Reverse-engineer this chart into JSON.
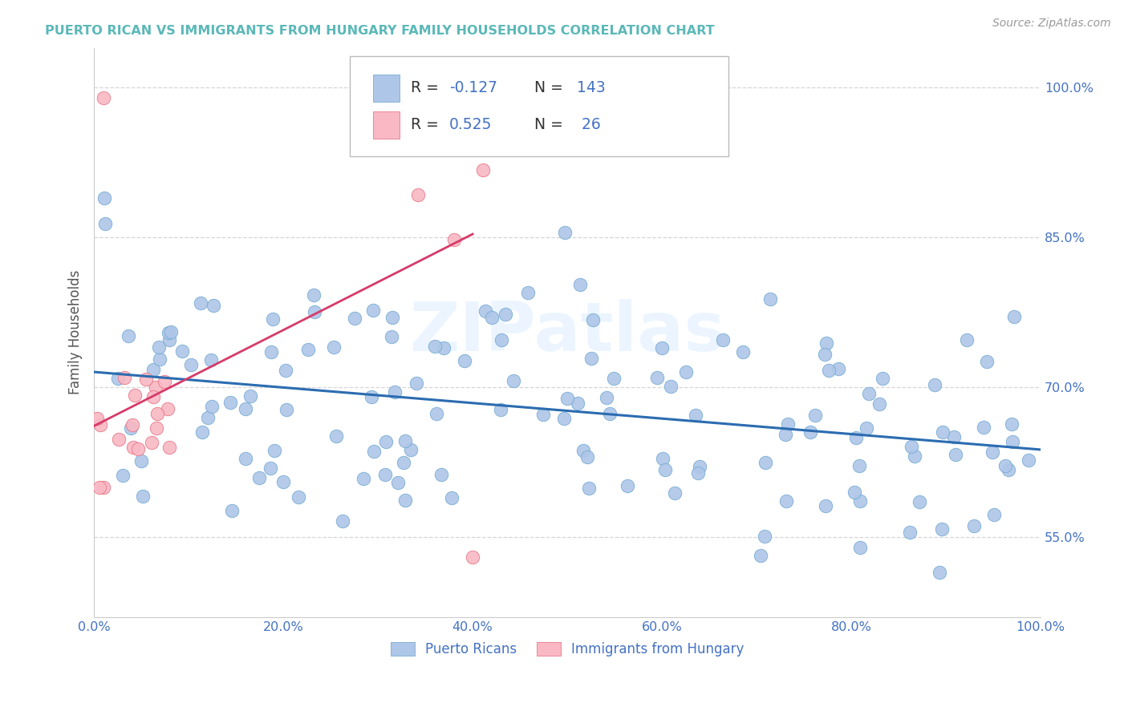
{
  "title": "PUERTO RICAN VS IMMIGRANTS FROM HUNGARY FAMILY HOUSEHOLDS CORRELATION CHART",
  "title_color": "#5BB8B8",
  "source_text": "Source: ZipAtlas.com",
  "ylabel": "Family Households",
  "xlim": [
    0.0,
    1.0
  ],
  "ylim": [
    0.47,
    1.04
  ],
  "yticks": [
    0.55,
    0.7,
    0.85,
    1.0
  ],
  "ytick_labels": [
    "55.0%",
    "70.0%",
    "85.0%",
    "100.0%"
  ],
  "xticks": [
    0.0,
    0.2,
    0.4,
    0.6,
    0.8,
    1.0
  ],
  "xtick_labels": [
    "0.0%",
    "20.0%",
    "40.0%",
    "60.0%",
    "80.0%",
    "100.0%"
  ],
  "blue_color": "#AEC6E8",
  "blue_edge": "#7AADD4",
  "pink_color": "#F9B8C4",
  "pink_edge": "#E87A8A",
  "trend_blue": "#2B6CB0",
  "trend_pink": "#D63B6A",
  "legend_label_blue": "Puerto Ricans",
  "legend_label_pink": "Immigrants from Hungary",
  "watermark": "ZIPatlas",
  "tick_color": "#4472C4",
  "label_color": "#555555",
  "grid_color": "#CCCCCC"
}
